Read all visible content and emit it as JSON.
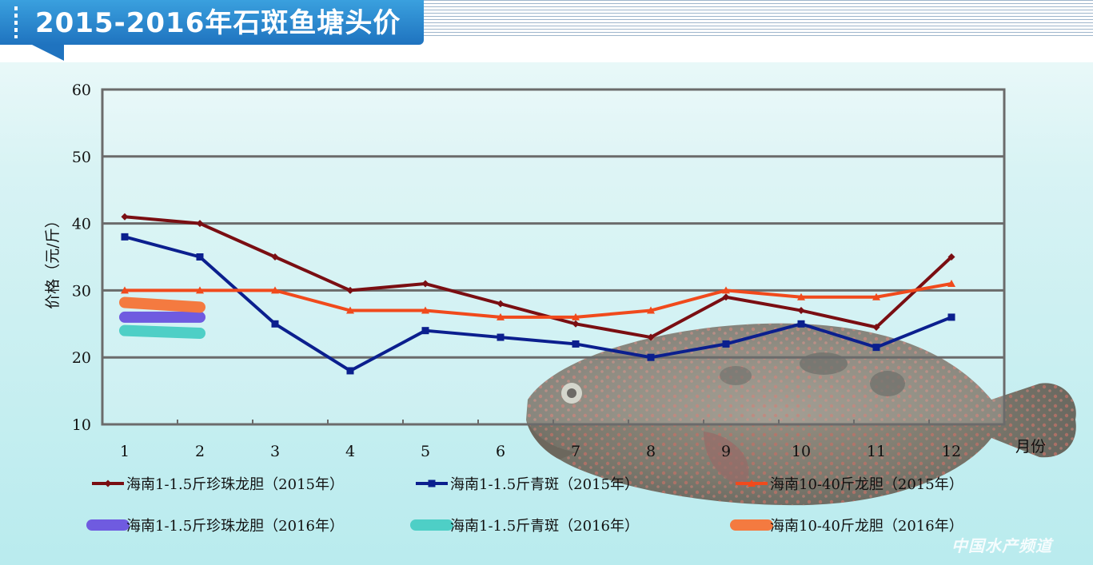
{
  "header": {
    "title": "2015-2016年石斑鱼塘头价"
  },
  "watermark": {
    "text": "中国水产频道"
  },
  "chart_data": {
    "type": "line",
    "title": "2015-2016年石斑鱼塘头价",
    "xlabel": "月份",
    "ylabel": "价格（元/斤）",
    "ylim": [
      10,
      60
    ],
    "yticks": [
      10,
      20,
      30,
      40,
      50,
      60
    ],
    "grid": true,
    "legend_position": "bottom",
    "categories": [
      "1",
      "2",
      "3",
      "4",
      "5",
      "6",
      "7",
      "8",
      "9",
      "10",
      "11",
      "12"
    ],
    "series": [
      {
        "name": "海南1-1.5斤珍珠龙胆（2015年）",
        "color": "#7a0e12",
        "marker": "diamond",
        "values": [
          41,
          40,
          35,
          30,
          31,
          28,
          25,
          23,
          29,
          27,
          24.5,
          35
        ]
      },
      {
        "name": "海南1-1.5斤青斑（2015年）",
        "color": "#0b1f8e",
        "marker": "square",
        "values": [
          38,
          35,
          25,
          18,
          24,
          23,
          22,
          20,
          22,
          25,
          21.5,
          26
        ]
      },
      {
        "name": "海南10-40斤龙胆（2015年）",
        "color": "#f04a1c",
        "marker": "triangle",
        "values": [
          30,
          30,
          30,
          27,
          27,
          26,
          26,
          27,
          30,
          29,
          29,
          31
        ]
      },
      {
        "name": "海南1-1.5斤珍珠龙胆（2016年）",
        "color": "#6f5be0",
        "marker": "none",
        "values": [
          26,
          26,
          null,
          null,
          null,
          null,
          null,
          null,
          null,
          null,
          null,
          null
        ]
      },
      {
        "name": "海南1-1.5斤青斑（2016年）",
        "color": "#4ecfc6",
        "marker": "none",
        "values": [
          24,
          23.6,
          null,
          null,
          null,
          null,
          null,
          null,
          null,
          null,
          null,
          null
        ]
      },
      {
        "name": "海南10-40斤龙胆（2016年）",
        "color": "#f47a40",
        "marker": "none",
        "values": [
          28.2,
          27.5,
          null,
          null,
          null,
          null,
          null,
          null,
          null,
          null,
          null,
          null
        ]
      }
    ]
  }
}
